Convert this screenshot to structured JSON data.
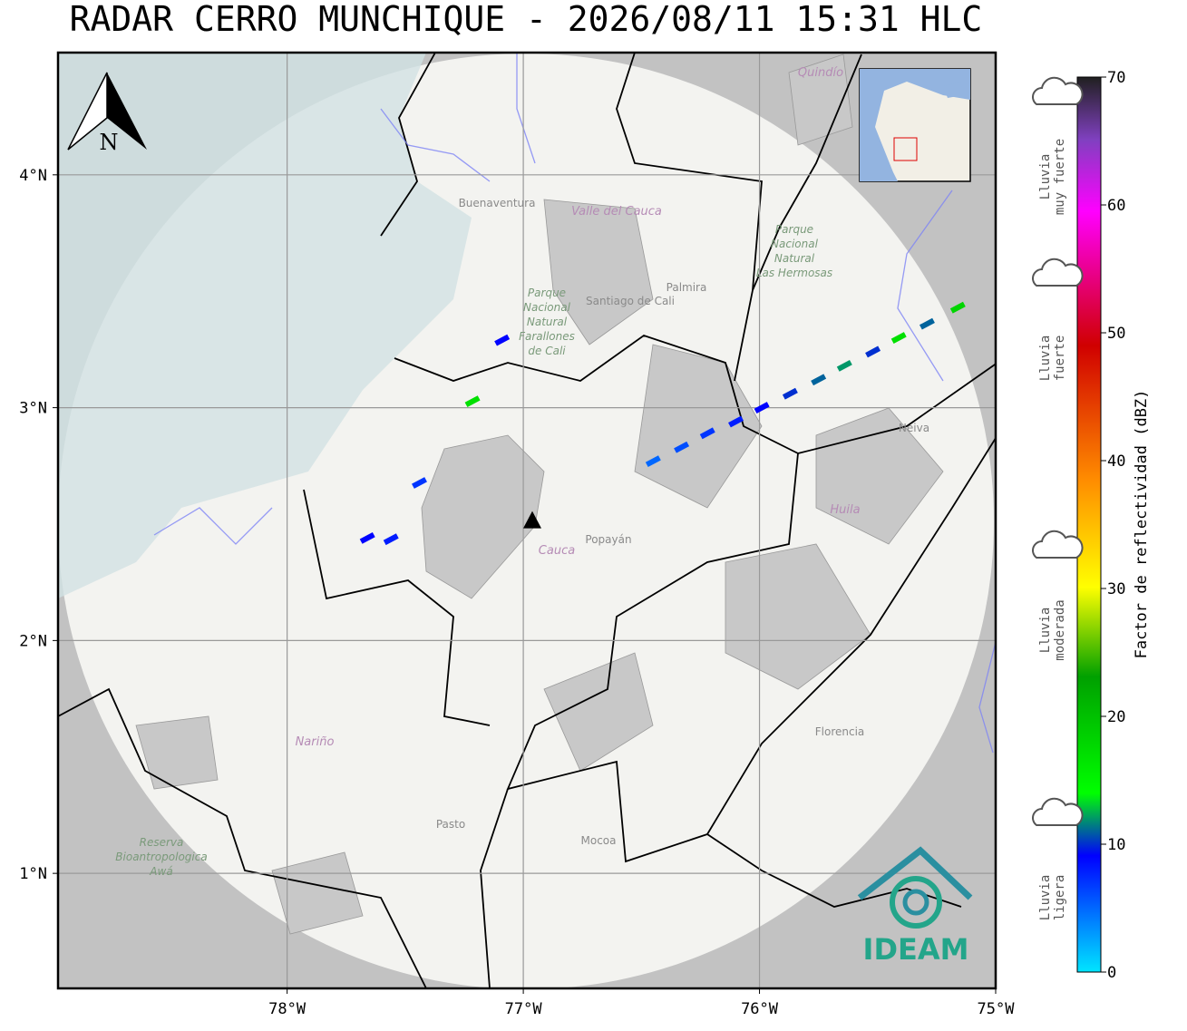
{
  "title": "RADAR CERRO MUNCHIQUE - 2026/08/11 15:31 HLC",
  "map": {
    "xlim": [
      -78.97,
      -75.0
    ],
    "ylim": [
      0.506,
      4.525
    ],
    "xticks": [
      {
        "value": -78,
        "label": "78°W"
      },
      {
        "value": -77,
        "label": "77°W"
      },
      {
        "value": -76,
        "label": "76°W"
      },
      {
        "value": -75,
        "label": "75°W"
      }
    ],
    "yticks": [
      {
        "value": 1,
        "label": "1°N"
      },
      {
        "value": 2,
        "label": "2°N"
      },
      {
        "value": 3,
        "label": "3°N"
      },
      {
        "value": 4,
        "label": "4°N"
      }
    ],
    "radar": {
      "lon": -76.962,
      "lat": 2.513
    },
    "north_label": "N",
    "places": [
      "Buenaventura",
      "Santiago de Cali",
      "Palmira",
      "Popayán",
      "Cauca",
      "Huila",
      "Nariño",
      "Pasto",
      "Mocoa",
      "Florencia",
      "Neiva",
      "Quindío",
      "Valle del Cauca"
    ],
    "parks": [
      [
        "Parque",
        "Nacional",
        "Natural",
        "Farallones",
        "de Cali"
      ],
      [
        "Parque",
        "Nacional",
        "Natural",
        "Las Hermosas"
      ],
      [
        "Reserva",
        "Bioantropologica",
        "Awá"
      ]
    ],
    "logo": "IDEAM",
    "echoes": [
      {
        "lon": -76.45,
        "lat": 2.77,
        "dbz": 5
      },
      {
        "lon": -76.33,
        "lat": 2.83,
        "dbz": 6
      },
      {
        "lon": -76.22,
        "lat": 2.89,
        "dbz": 7
      },
      {
        "lon": -76.1,
        "lat": 2.94,
        "dbz": 8
      },
      {
        "lon": -75.99,
        "lat": 3.0,
        "dbz": 9
      },
      {
        "lon": -75.87,
        "lat": 3.06,
        "dbz": 10
      },
      {
        "lon": -75.75,
        "lat": 3.12,
        "dbz": 11
      },
      {
        "lon": -75.64,
        "lat": 3.18,
        "dbz": 12
      },
      {
        "lon": -75.52,
        "lat": 3.24,
        "dbz": 10
      },
      {
        "lon": -75.41,
        "lat": 3.3,
        "dbz": 17
      },
      {
        "lon": -75.29,
        "lat": 3.36,
        "dbz": 11
      },
      {
        "lon": -75.16,
        "lat": 3.43,
        "dbz": 18
      },
      {
        "lon": -77.215,
        "lat": 3.027,
        "dbz": 17
      },
      {
        "lon": -77.44,
        "lat": 2.677,
        "dbz": 7
      },
      {
        "lon": -77.66,
        "lat": 2.44,
        "dbz": 9
      },
      {
        "lon": -77.56,
        "lat": 2.435,
        "dbz": 8
      },
      {
        "lon": -77.09,
        "lat": 3.29,
        "dbz": 9
      }
    ]
  },
  "colorbar": {
    "label": "Factor de reflectividad (dBZ)",
    "lim": [
      0,
      70
    ],
    "ticks": [
      0,
      10,
      20,
      30,
      40,
      50,
      60,
      70
    ]
  },
  "rain_levels": [
    {
      "lines": [
        "Lluvia",
        "muy fuerte"
      ]
    },
    {
      "lines": [
        "Lluvia",
        "fuerte"
      ]
    },
    {
      "lines": [
        "Lluvia",
        "moderada"
      ]
    },
    {
      "lines": [
        "Lluvia",
        "ligera"
      ]
    }
  ]
}
